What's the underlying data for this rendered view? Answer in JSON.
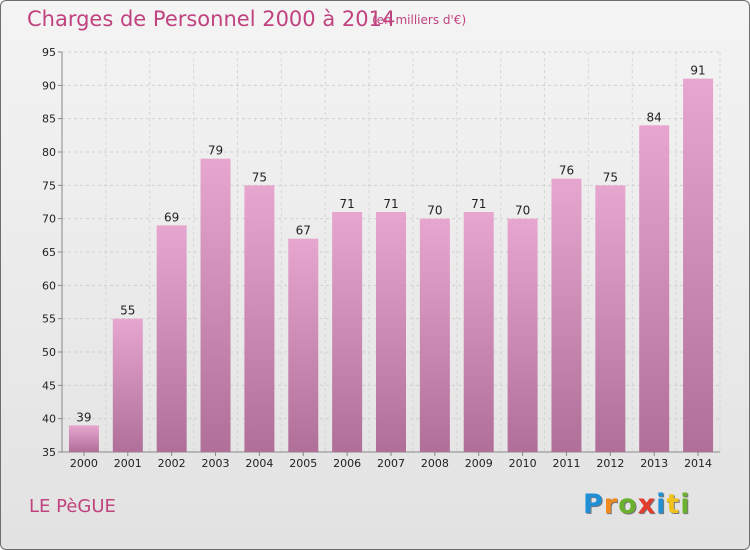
{
  "header": {
    "title": "Charges de Personnel 2000 à 2014",
    "subtitle": "(en milliers d'€)"
  },
  "footer": {
    "location": "LE PèGUE",
    "brand": "Proxiti",
    "brand_letters": [
      {
        "ch": "P",
        "color": "#1f8fd6"
      },
      {
        "ch": "r",
        "color": "#f08a1c"
      },
      {
        "ch": "o",
        "color": "#6bb12e"
      },
      {
        "ch": "x",
        "color": "#e23b2e"
      },
      {
        "ch": "i",
        "color": "#1f8fd6"
      },
      {
        "ch": "t",
        "color": "#f0c21c"
      },
      {
        "ch": "i",
        "color": "#6bb12e"
      }
    ]
  },
  "colors": {
    "accent": "#c0427e",
    "bar_top": "#e7a6cf",
    "bar_bottom": "#b06f98"
  },
  "chart_data": {
    "type": "bar",
    "categories": [
      "2000",
      "2001",
      "2002",
      "2003",
      "2004",
      "2005",
      "2006",
      "2007",
      "2008",
      "2009",
      "2010",
      "2011",
      "2012",
      "2013",
      "2014"
    ],
    "values": [
      39,
      55,
      69,
      79,
      75,
      67,
      71,
      71,
      70,
      71,
      70,
      76,
      75,
      84,
      91
    ],
    "title": "Charges de Personnel 2000 à 2014",
    "subtitle": "(en milliers d'€)",
    "xlabel": "",
    "ylabel": "",
    "ylim": [
      35,
      95
    ],
    "yticks": [
      35,
      40,
      45,
      50,
      55,
      60,
      65,
      70,
      75,
      80,
      85,
      90,
      95
    ],
    "grid": true,
    "data_labels": true
  }
}
